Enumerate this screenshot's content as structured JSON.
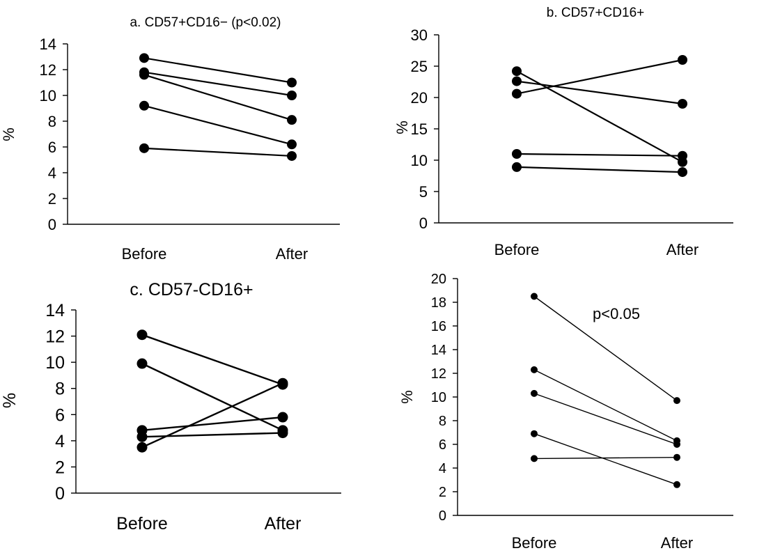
{
  "chart_data": [
    {
      "type": "line",
      "title": "a. CD57+CD16− (p<0.02)",
      "annotation": "",
      "ylabel": "%",
      "categories": [
        "Before",
        "After"
      ],
      "ylim": [
        0,
        14
      ],
      "yticks": [
        "0",
        "2",
        "4",
        "6",
        "8",
        "10",
        "12",
        "14"
      ],
      "series": [
        {
          "values": [
            12.9,
            11.0
          ]
        },
        {
          "values": [
            11.8,
            10.0
          ]
        },
        {
          "values": [
            11.6,
            8.1
          ]
        },
        {
          "values": [
            9.2,
            6.2
          ]
        },
        {
          "values": [
            5.9,
            5.3
          ]
        }
      ]
    },
    {
      "type": "line",
      "title": "b. CD57+CD16+",
      "annotation": "",
      "ylabel": "%",
      "categories": [
        "Before",
        "After"
      ],
      "ylim": [
        0,
        30
      ],
      "yticks": [
        "0",
        "5",
        "10",
        "15",
        "20",
        "25",
        "30"
      ],
      "series": [
        {
          "values": [
            24.2,
            9.7
          ]
        },
        {
          "values": [
            22.6,
            19.0
          ]
        },
        {
          "values": [
            20.6,
            26.0
          ]
        },
        {
          "values": [
            11.0,
            10.7
          ]
        },
        {
          "values": [
            8.9,
            8.1
          ]
        }
      ]
    },
    {
      "type": "line",
      "title": "c. CD57-CD16+",
      "annotation": "",
      "ylabel": "%",
      "categories": [
        "Before",
        "After"
      ],
      "ylim": [
        0,
        14
      ],
      "yticks": [
        "0",
        "2",
        "4",
        "6",
        "8",
        "10",
        "12",
        "14"
      ],
      "series": [
        {
          "values": [
            12.1,
            8.3
          ]
        },
        {
          "values": [
            9.9,
            4.8
          ]
        },
        {
          "values": [
            4.8,
            5.8
          ]
        },
        {
          "values": [
            4.3,
            4.6
          ]
        },
        {
          "values": [
            3.5,
            8.4
          ]
        }
      ]
    },
    {
      "type": "line",
      "title": "",
      "annotation": "p<0.05",
      "ylabel": "%",
      "categories": [
        "Before",
        "After"
      ],
      "ylim": [
        0,
        20
      ],
      "yticks": [
        "0",
        "2",
        "4",
        "6",
        "8",
        "10",
        "12",
        "14",
        "16",
        "18",
        "20"
      ],
      "series": [
        {
          "values": [
            18.5,
            9.7
          ]
        },
        {
          "values": [
            12.3,
            6.3
          ]
        },
        {
          "values": [
            10.3,
            6.0
          ]
        },
        {
          "values": [
            6.9,
            2.6
          ]
        },
        {
          "values": [
            4.8,
            4.9
          ]
        }
      ]
    }
  ]
}
